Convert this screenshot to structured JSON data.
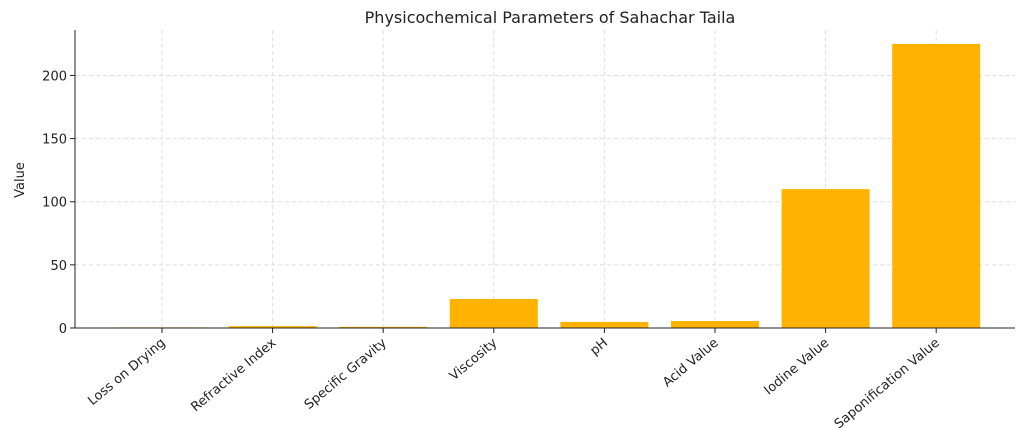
{
  "chart_data": {
    "type": "bar",
    "title": "Physicochemical Parameters of Sahachar Taila",
    "y_label": "Value",
    "categories": [
      "Loss on Drying",
      "Refractive Index",
      "Specific Gravity",
      "Viscosity",
      "pH",
      "Acid Value",
      "Iodine Value",
      "Saponification Value"
    ],
    "values": [
      0.5,
      1.47,
      0.92,
      23,
      4.8,
      5.5,
      110,
      225
    ],
    "color": "#ffb300",
    "ylim": [
      0,
      236
    ],
    "yticks": [
      0,
      50,
      100,
      150,
      200
    ],
    "grid": true
  }
}
